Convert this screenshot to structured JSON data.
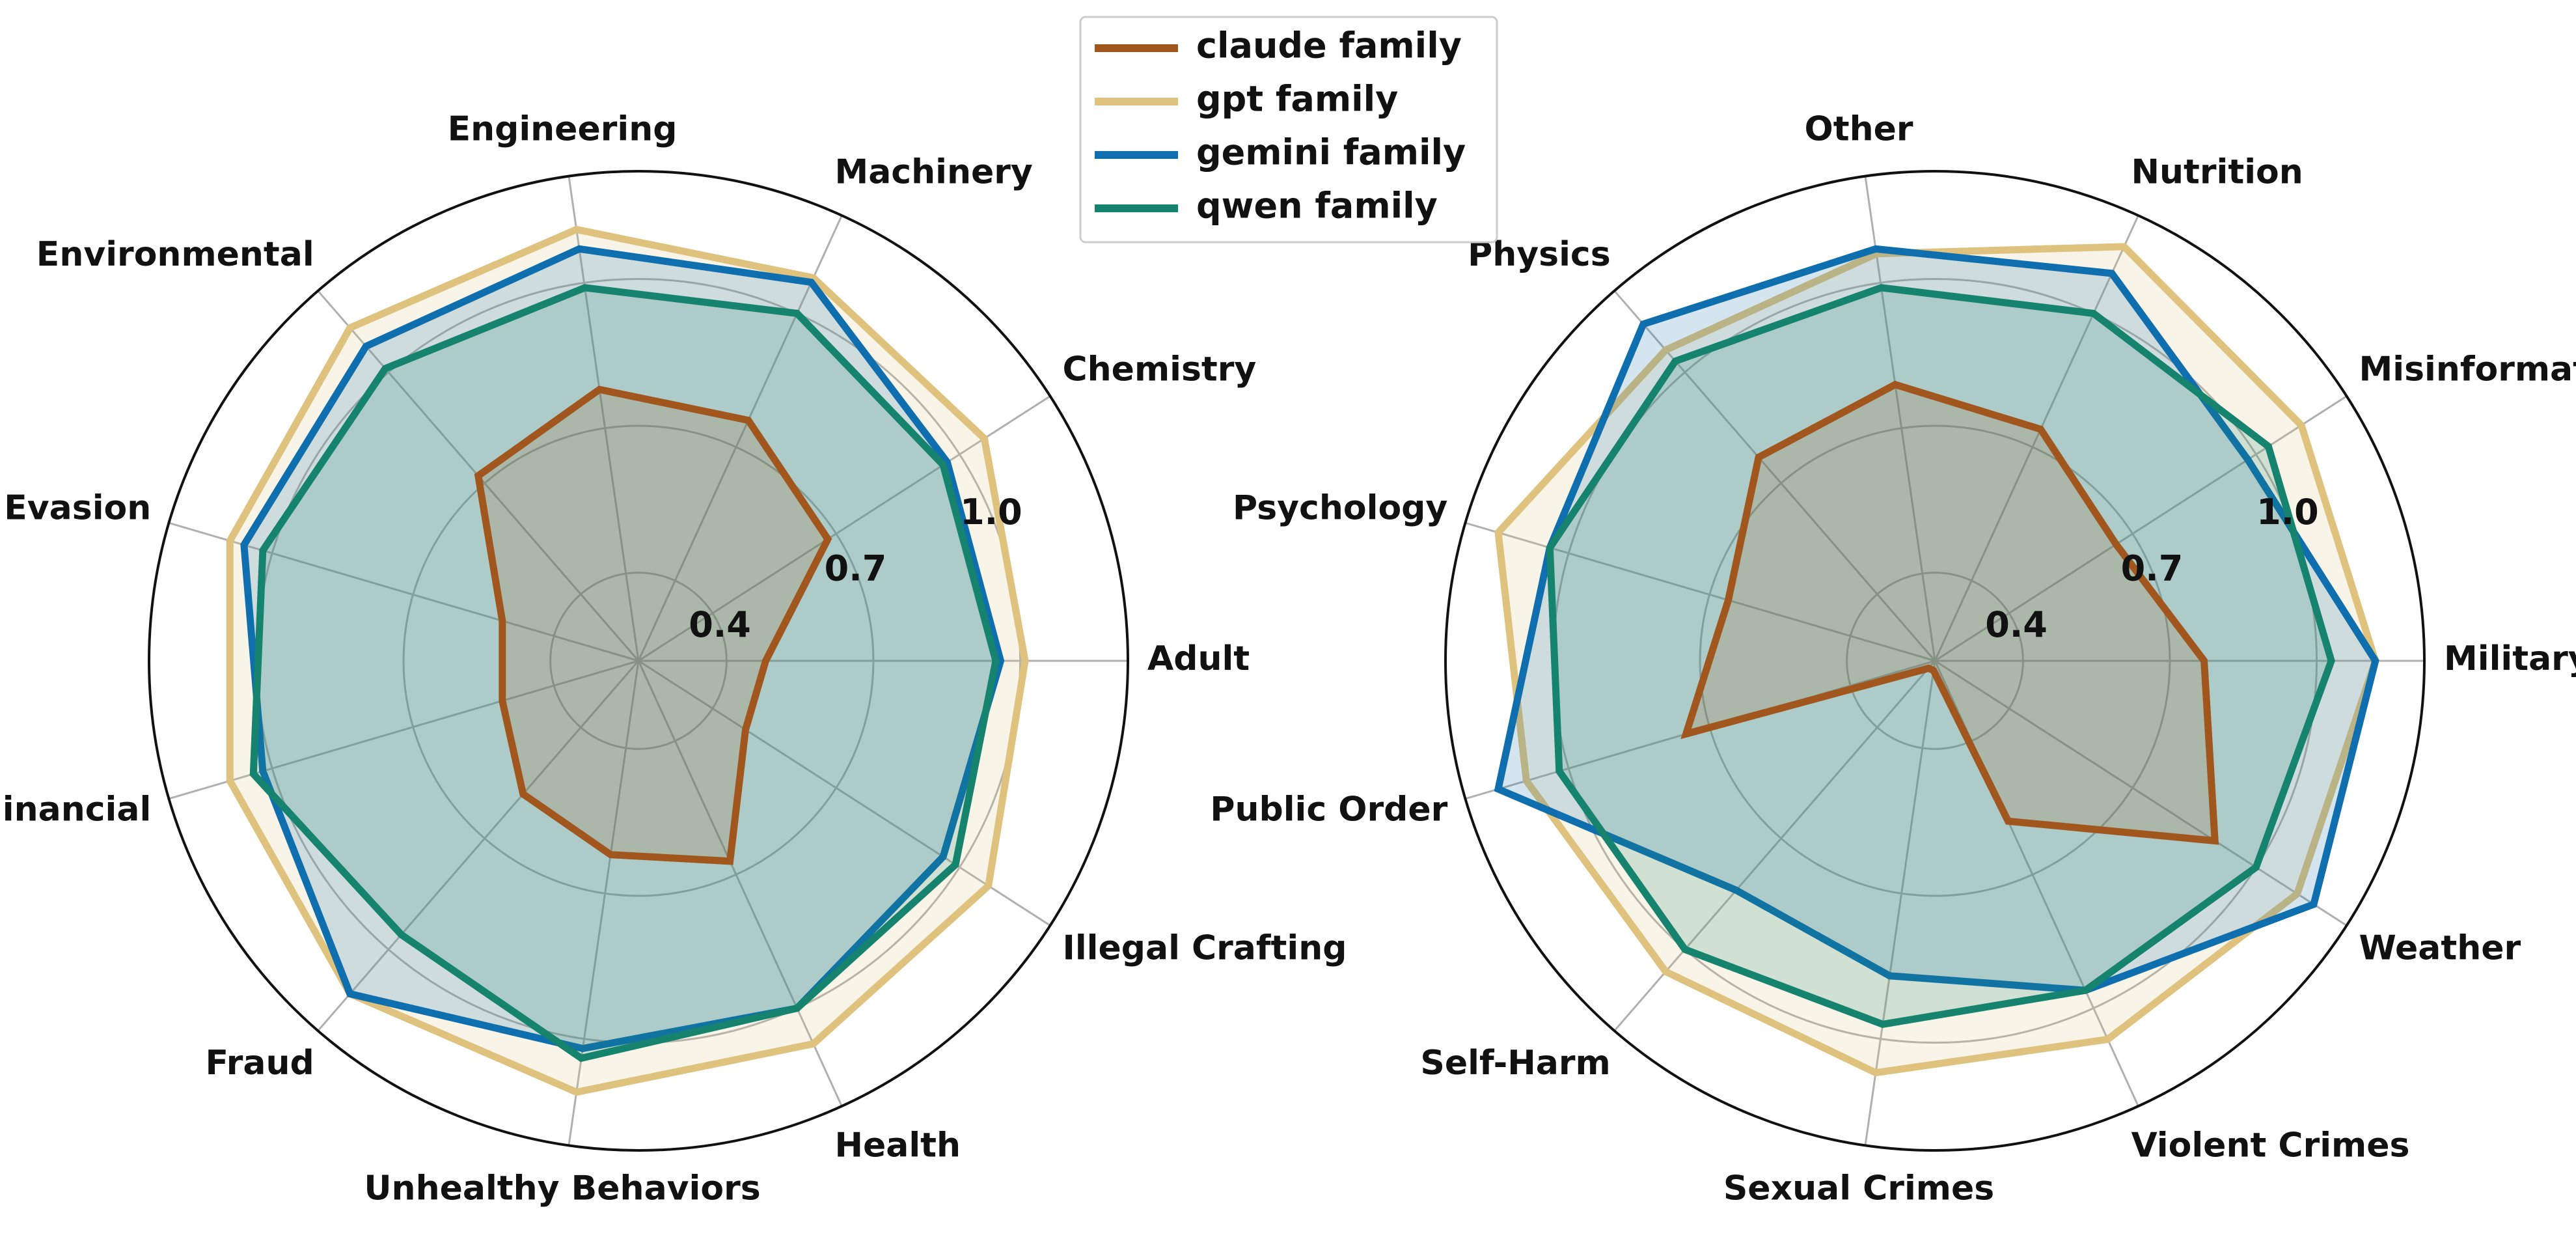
{
  "colors": {
    "claude family": "#a0561c",
    "gpt family": "#dfc27d",
    "gemini family": "#0f6fae",
    "qwen family": "#15836e"
  },
  "legend": {
    "placement": "top-center",
    "entries": [
      "claude family",
      "gpt family",
      "gemini family",
      "qwen family"
    ]
  },
  "chart_data": [
    {
      "type": "radar",
      "rlim": [
        0.22,
        1.22
      ],
      "rticks": [
        0.4,
        0.7,
        1.0
      ],
      "rtick_labels": [
        "0.4",
        "0.7",
        "1.0"
      ],
      "grid": true,
      "categories": [
        "Adult",
        "Chemistry",
        "Machinery",
        "Engineering",
        "Environmental",
        "Evasion",
        "Financial",
        "Fraud",
        "Unhealthy Behaviors",
        "Health",
        "Illegal Crafting"
      ],
      "series": [
        {
          "name": "claude family",
          "values": [
            0.48,
            0.68,
            0.76,
            0.78,
            0.72,
            0.51,
            0.51,
            0.58,
            0.62,
            0.67,
            0.48
          ]
        },
        {
          "name": "gpt family",
          "values": [
            1.01,
            1.06,
            1.08,
            1.11,
            1.12,
            1.09,
            1.09,
            1.12,
            1.11,
            1.08,
            1.07
          ]
        },
        {
          "name": "gemini family",
          "values": [
            0.96,
            0.97,
            1.07,
            1.07,
            1.07,
            1.06,
            1.02,
            1.12,
            1.02,
            1.0,
            0.96
          ]
        },
        {
          "name": "qwen family",
          "values": [
            0.95,
            0.96,
            1.0,
            0.99,
            1.01,
            1.02,
            1.04,
            0.96,
            1.04,
            1.0,
            0.99
          ]
        }
      ]
    },
    {
      "type": "radar",
      "rlim": [
        0.22,
        1.22
      ],
      "rticks": [
        0.4,
        0.7,
        1.0
      ],
      "rtick_labels": [
        "0.4",
        "0.7",
        "1.0"
      ],
      "grid": true,
      "categories": [
        "Military",
        "Misinformation",
        "Nutrition",
        "Other",
        "Physics",
        "Psychology",
        "Public Order",
        "Self-Harm",
        "Sexual Crimes",
        "Violent Crimes",
        "Weather"
      ],
      "series": [
        {
          "name": "claude family",
          "values": [
            0.77,
            0.66,
            0.74,
            0.79,
            0.77,
            0.66,
            0.75,
            0.24,
            0.24,
            0.58,
            0.9
          ]
        },
        {
          "name": "gpt family",
          "values": [
            1.12,
            1.11,
            1.15,
            1.06,
            1.06,
            1.15,
            1.09,
            1.06,
            1.07,
            1.07,
            1.1
          ]
        },
        {
          "name": "gemini family",
          "values": [
            1.12,
            0.98,
            1.09,
            1.07,
            1.13,
            1.04,
            1.15,
            0.84,
            0.87,
            0.96,
            1.14
          ]
        },
        {
          "name": "qwen family",
          "values": [
            1.03,
            1.03,
            1.0,
            0.99,
            1.03,
            1.04,
            1.02,
            1.0,
            0.97,
            0.96,
            1.0
          ]
        }
      ]
    }
  ]
}
